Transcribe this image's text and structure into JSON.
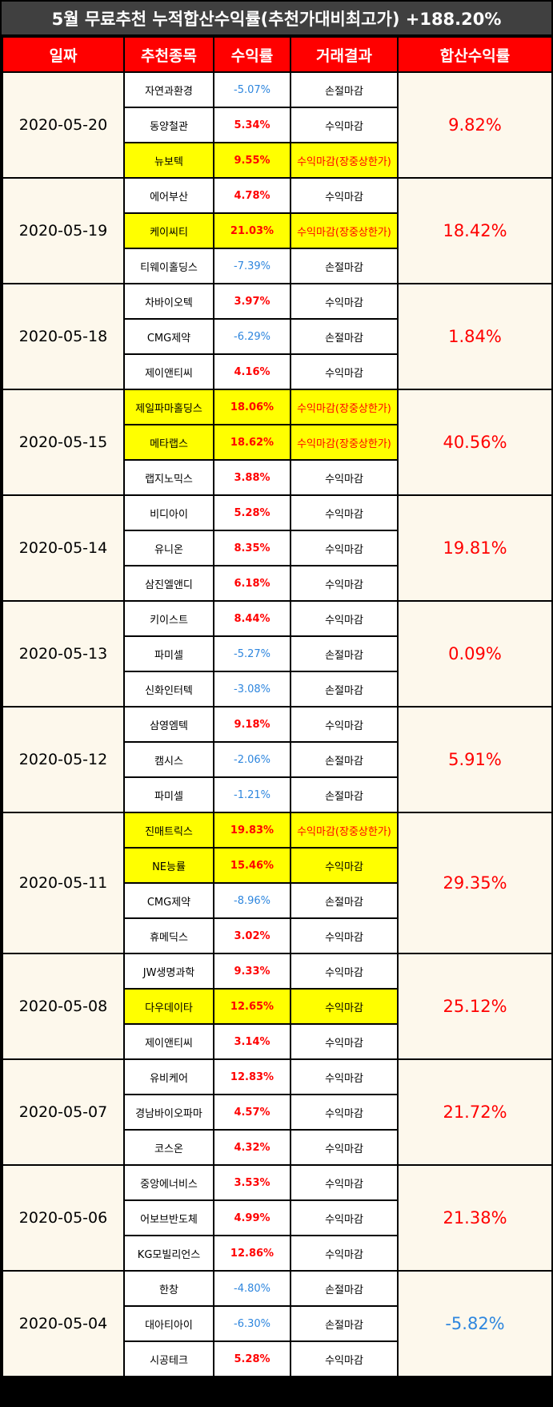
{
  "title": "5월 무료추천 누적합산수익률(추천가대비최고가) +188.20%",
  "headers": [
    "일짜",
    "추천종목",
    "수익률",
    "거래결과",
    "합산수익률"
  ],
  "groups": [
    {
      "date": "2020-05-20",
      "total": "9.82%",
      "total_negative": false,
      "rows": [
        {
          "stock": "자연과환경",
          "rate": "-5.07%",
          "negative": true,
          "result": "손절마감",
          "highlight": false
        },
        {
          "stock": "동양철관",
          "rate": "5.34%",
          "negative": false,
          "result": "수익마감",
          "highlight": false
        },
        {
          "stock": "뉴보텍",
          "rate": "9.55%",
          "negative": false,
          "result": "수익마감(장중상한가)",
          "highlight": true
        }
      ]
    },
    {
      "date": "2020-05-19",
      "total": "18.42%",
      "total_negative": false,
      "rows": [
        {
          "stock": "에어부산",
          "rate": "4.78%",
          "negative": false,
          "result": "수익마감",
          "highlight": false
        },
        {
          "stock": "케이씨티",
          "rate": "21.03%",
          "negative": false,
          "result": "수익마감(장중상한가)",
          "highlight": true
        },
        {
          "stock": "티웨이홀딩스",
          "rate": "-7.39%",
          "negative": true,
          "result": "손절마감",
          "highlight": false
        }
      ]
    },
    {
      "date": "2020-05-18",
      "total": "1.84%",
      "total_negative": false,
      "rows": [
        {
          "stock": "차바이오텍",
          "rate": "3.97%",
          "negative": false,
          "result": "수익마감",
          "highlight": false
        },
        {
          "stock": "CMG제약",
          "rate": "-6.29%",
          "negative": true,
          "result": "손절마감",
          "highlight": false
        },
        {
          "stock": "제이앤티씨",
          "rate": "4.16%",
          "negative": false,
          "result": "수익마감",
          "highlight": false
        }
      ]
    },
    {
      "date": "2020-05-15",
      "total": "40.56%",
      "total_negative": false,
      "rows": [
        {
          "stock": "제일파마홀딩스",
          "rate": "18.06%",
          "negative": false,
          "result": "수익마감(장중상한가)",
          "highlight": true
        },
        {
          "stock": "메타랩스",
          "rate": "18.62%",
          "negative": false,
          "result": "수익마감(장중상한가)",
          "highlight": true
        },
        {
          "stock": "랩지노믹스",
          "rate": "3.88%",
          "negative": false,
          "result": "수익마감",
          "highlight": false
        }
      ]
    },
    {
      "date": "2020-05-14",
      "total": "19.81%",
      "total_negative": false,
      "rows": [
        {
          "stock": "비디아이",
          "rate": "5.28%",
          "negative": false,
          "result": "수익마감",
          "highlight": false
        },
        {
          "stock": "유니온",
          "rate": "8.35%",
          "negative": false,
          "result": "수익마감",
          "highlight": false
        },
        {
          "stock": "삼진엘앤디",
          "rate": "6.18%",
          "negative": false,
          "result": "수익마감",
          "highlight": false
        }
      ]
    },
    {
      "date": "2020-05-13",
      "total": "0.09%",
      "total_negative": false,
      "rows": [
        {
          "stock": "키이스트",
          "rate": "8.44%",
          "negative": false,
          "result": "수익마감",
          "highlight": false
        },
        {
          "stock": "파미셀",
          "rate": "-5.27%",
          "negative": true,
          "result": "손절마감",
          "highlight": false
        },
        {
          "stock": "신화인터텍",
          "rate": "-3.08%",
          "negative": true,
          "result": "손절마감",
          "highlight": false
        }
      ]
    },
    {
      "date": "2020-05-12",
      "total": "5.91%",
      "total_negative": false,
      "rows": [
        {
          "stock": "삼영엠텍",
          "rate": "9.18%",
          "negative": false,
          "result": "수익마감",
          "highlight": false
        },
        {
          "stock": "캠시스",
          "rate": "-2.06%",
          "negative": true,
          "result": "손절마감",
          "highlight": false
        },
        {
          "stock": "파미셀",
          "rate": "-1.21%",
          "negative": true,
          "result": "손절마감",
          "highlight": false
        }
      ]
    },
    {
      "date": "2020-05-11",
      "total": "29.35%",
      "total_negative": false,
      "rows": [
        {
          "stock": "진매트릭스",
          "rate": "19.83%",
          "negative": false,
          "result": "수익마감(장중상한가)",
          "highlight": true
        },
        {
          "stock": "NE능률",
          "rate": "15.46%",
          "negative": false,
          "result": "수익마감",
          "highlight": true
        },
        {
          "stock": "CMG제약",
          "rate": "-8.96%",
          "negative": true,
          "result": "손절마감",
          "highlight": false
        },
        {
          "stock": "휴메딕스",
          "rate": "3.02%",
          "negative": false,
          "result": "수익마감",
          "highlight": false
        }
      ]
    },
    {
      "date": "2020-05-08",
      "total": "25.12%",
      "total_negative": false,
      "rows": [
        {
          "stock": "JW생명과학",
          "rate": "9.33%",
          "negative": false,
          "result": "수익마감",
          "highlight": false
        },
        {
          "stock": "다우데이타",
          "rate": "12.65%",
          "negative": false,
          "result": "수익마감",
          "highlight": true
        },
        {
          "stock": "제이앤티씨",
          "rate": "3.14%",
          "negative": false,
          "result": "수익마감",
          "highlight": false
        }
      ]
    },
    {
      "date": "2020-05-07",
      "total": "21.72%",
      "total_negative": false,
      "rows": [
        {
          "stock": "유비케어",
          "rate": "12.83%",
          "negative": false,
          "result": "수익마감",
          "highlight": false
        },
        {
          "stock": "경남바이오파마",
          "rate": "4.57%",
          "negative": false,
          "result": "수익마감",
          "highlight": false
        },
        {
          "stock": "코스온",
          "rate": "4.32%",
          "negative": false,
          "result": "수익마감",
          "highlight": false
        }
      ]
    },
    {
      "date": "2020-05-06",
      "total": "21.38%",
      "total_negative": false,
      "rows": [
        {
          "stock": "중앙에너비스",
          "rate": "3.53%",
          "negative": false,
          "result": "수익마감",
          "highlight": false
        },
        {
          "stock": "어보브반도체",
          "rate": "4.99%",
          "negative": false,
          "result": "수익마감",
          "highlight": false
        },
        {
          "stock": "KG모빌리언스",
          "rate": "12.86%",
          "negative": false,
          "result": "수익마감",
          "highlight": false
        }
      ]
    },
    {
      "date": "2020-05-04",
      "total": "-5.82%",
      "total_negative": true,
      "rows": [
        {
          "stock": "한창",
          "rate": "-4.80%",
          "negative": true,
          "result": "손절마감",
          "highlight": false
        },
        {
          "stock": "대아티아이",
          "rate": "-6.30%",
          "negative": true,
          "result": "손절마감",
          "highlight": false
        },
        {
          "stock": "시공테크",
          "rate": "5.28%",
          "negative": false,
          "result": "수익마감",
          "highlight": false
        }
      ]
    }
  ],
  "colors": {
    "header_bg": "#ff0000",
    "title_bg": "#404040",
    "highlight": "#ffff00",
    "positive": "#ff0000",
    "negative": "#2e86de",
    "date_bg": "#fdf8ec"
  }
}
